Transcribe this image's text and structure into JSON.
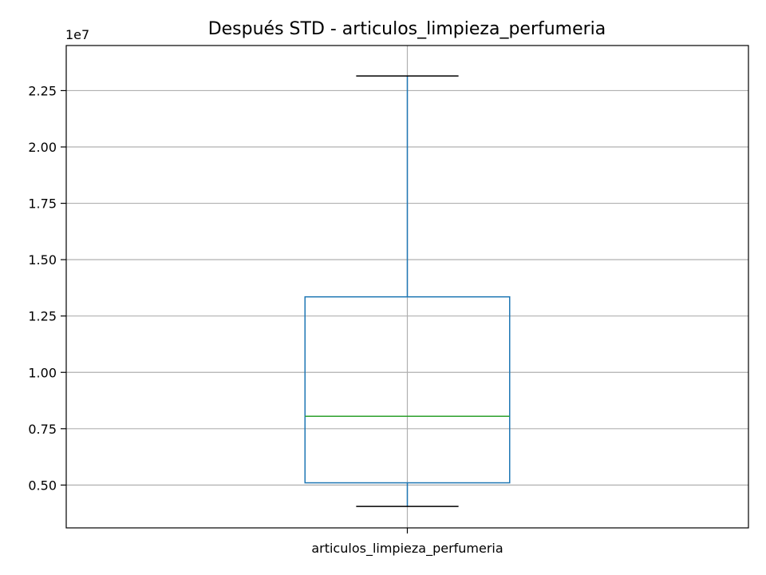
{
  "chart_data": {
    "type": "box",
    "title": "Después STD - articulos_limpieza_perfumeria",
    "xlabel": "",
    "ylabel": "",
    "categories": [
      "articulos_limpieza_perfumeria"
    ],
    "boxes": [
      {
        "category": "articulos_limpieza_perfumeria",
        "whisker_low": 4050000,
        "q1": 5100000,
        "median": 8050000,
        "q3": 13350000,
        "whisker_high": 23150000
      }
    ],
    "ylim": [
      3100000,
      24500000
    ],
    "yticks": [
      5000000,
      7500000,
      10000000,
      12500000,
      15000000,
      17500000,
      20000000,
      22500000
    ],
    "ytick_labels": [
      "0.50",
      "0.75",
      "1.00",
      "1.25",
      "1.50",
      "1.75",
      "2.00",
      "2.25"
    ],
    "y_offset_label": "1e7",
    "grid": true,
    "colors": {
      "box": "#1f77b4",
      "median": "#2ca02c",
      "caps": "#000000",
      "grid": "#b0b0b0"
    }
  }
}
